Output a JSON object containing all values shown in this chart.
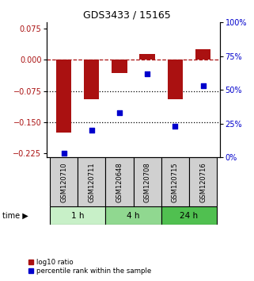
{
  "title": "GDS3433 / 15165",
  "samples": [
    "GSM120710",
    "GSM120711",
    "GSM120648",
    "GSM120708",
    "GSM120715",
    "GSM120716"
  ],
  "log10_ratio": [
    -0.175,
    -0.095,
    -0.032,
    0.015,
    -0.095,
    0.025
  ],
  "percentile_rank": [
    3,
    20,
    33,
    62,
    23,
    53
  ],
  "time_groups": [
    {
      "label": "1 h",
      "indices": [
        0,
        1
      ],
      "color": "#c8f0c8"
    },
    {
      "label": "4 h",
      "indices": [
        2,
        3
      ],
      "color": "#90d890"
    },
    {
      "label": "24 h",
      "indices": [
        4,
        5
      ],
      "color": "#50c050"
    }
  ],
  "bar_color": "#aa1111",
  "dot_color": "#0000cc",
  "ylim_left": [
    -0.235,
    0.09
  ],
  "ylim_right": [
    0,
    100
  ],
  "yticks_left": [
    0.075,
    0,
    -0.075,
    -0.15,
    -0.225
  ],
  "yticks_right": [
    100,
    75,
    50,
    25,
    0
  ],
  "hlines_dotted": [
    -0.075,
    -0.15
  ],
  "hline_dashed": 0,
  "sample_box_color": "#d0d0d0",
  "bar_width": 0.55,
  "dot_size": 22
}
